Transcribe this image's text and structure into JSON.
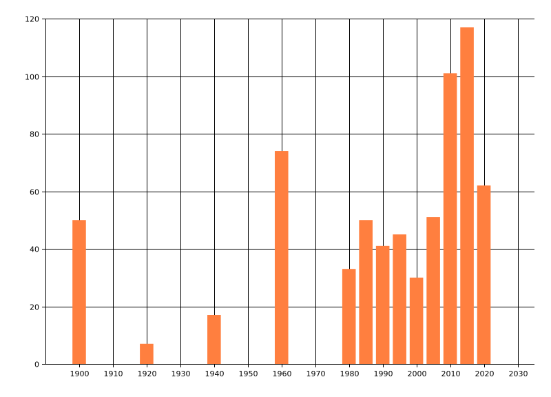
{
  "chart_data": {
    "type": "bar",
    "title": "",
    "xlabel": "",
    "ylabel": "",
    "x": [
      1900,
      1920,
      1940,
      1960,
      1980,
      1985,
      1990,
      1995,
      2000,
      2005,
      2010,
      2015,
      2020
    ],
    "values": [
      50,
      7,
      17,
      74,
      33,
      50,
      41,
      45,
      30,
      51,
      101,
      117,
      62
    ],
    "bar_width_years": 4,
    "xlim": [
      1890,
      2035
    ],
    "ylim": [
      0,
      120
    ],
    "x_ticks": [
      1900,
      1910,
      1920,
      1930,
      1940,
      1950,
      1960,
      1970,
      1980,
      1990,
      2000,
      2010,
      2020,
      2030
    ],
    "x_tick_labels": [
      "1900",
      "1910",
      "1920",
      "1930",
      "1940",
      "1950",
      "1960",
      "1970",
      "1980",
      "1990",
      "2000",
      "2010",
      "2020",
      "2030"
    ],
    "y_ticks": [
      0,
      20,
      40,
      60,
      80,
      100,
      120
    ],
    "y_tick_labels": [
      "0",
      "20",
      "40",
      "60",
      "80",
      "100",
      "120"
    ],
    "grid": true,
    "legend": "none",
    "colors": {
      "bar": "#ff7f3f",
      "grid": "#000000",
      "axis": "#000000",
      "background": "#ffffff"
    }
  }
}
